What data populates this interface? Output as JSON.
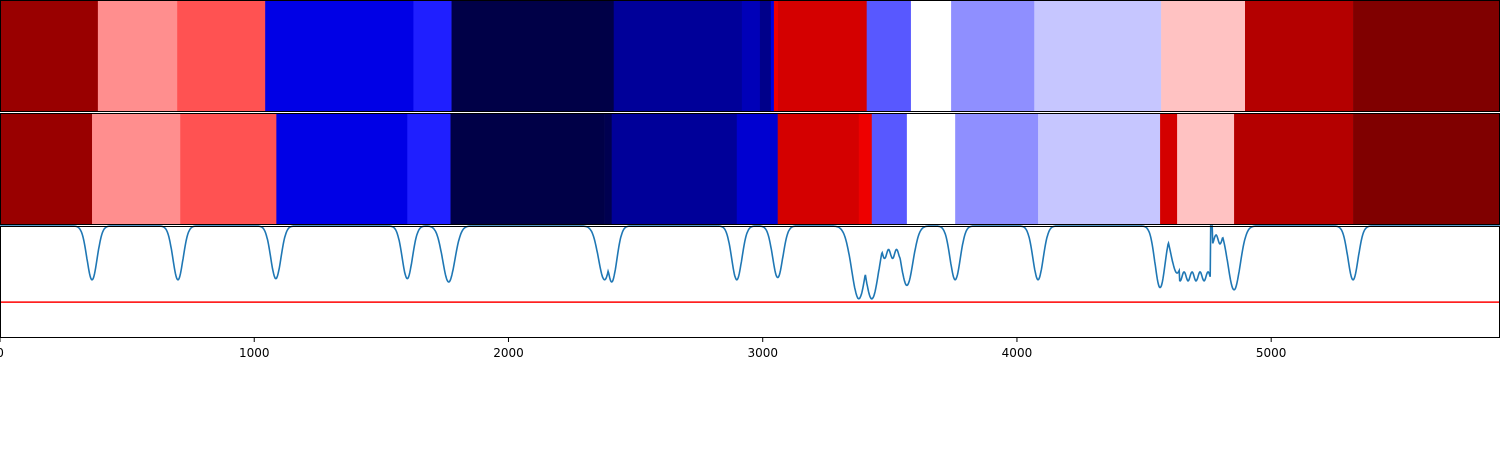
{
  "chart_data": {
    "type": "heatmap",
    "xlim": [
      0,
      5900
    ],
    "x_ticks": [
      {
        "value": 0,
        "label": "0"
      },
      {
        "value": 1000,
        "label": "1000"
      },
      {
        "value": 2000,
        "label": "2000"
      },
      {
        "value": 3000,
        "label": "3000"
      },
      {
        "value": 4000,
        "label": "4000"
      },
      {
        "value": 5000,
        "label": "5000"
      }
    ],
    "rows": [
      {
        "segments": [
          {
            "x0": 0,
            "x1": 385,
            "color": "#990000"
          },
          {
            "x0": 385,
            "x1": 697,
            "color": "#ff8e8e"
          },
          {
            "x0": 697,
            "x1": 1043,
            "color": "#ff5252"
          },
          {
            "x0": 1043,
            "x1": 1626,
            "color": "#0000e6"
          },
          {
            "x0": 1626,
            "x1": 1776,
            "color": "#1f1fff"
          },
          {
            "x0": 1776,
            "x1": 2414,
            "color": "#000047"
          },
          {
            "x0": 2414,
            "x1": 2918,
            "color": "#000099"
          },
          {
            "x0": 2918,
            "x1": 2989,
            "color": "#0000b8"
          },
          {
            "x0": 2989,
            "x1": 3032,
            "color": "#00008a"
          },
          {
            "x0": 3032,
            "x1": 3044,
            "color": "#0000e0"
          },
          {
            "x0": 3044,
            "x1": 3060,
            "color": "#ee0000"
          },
          {
            "x0": 3060,
            "x1": 3409,
            "color": "#d40000"
          },
          {
            "x0": 3409,
            "x1": 3583,
            "color": "#5858ff"
          },
          {
            "x0": 3583,
            "x1": 3741,
            "color": "#ffffff"
          },
          {
            "x0": 3741,
            "x1": 4068,
            "color": "#8f8fff"
          },
          {
            "x0": 4068,
            "x1": 4567,
            "color": "#c6c6ff"
          },
          {
            "x0": 4567,
            "x1": 4897,
            "color": "#ffc2c2"
          },
          {
            "x0": 4897,
            "x1": 5322,
            "color": "#b40000"
          },
          {
            "x0": 5322,
            "x1": 5900,
            "color": "#800000"
          }
        ]
      },
      {
        "segments": [
          {
            "x0": 0,
            "x1": 362,
            "color": "#990000"
          },
          {
            "x0": 362,
            "x1": 709,
            "color": "#ff8e8e"
          },
          {
            "x0": 709,
            "x1": 1087,
            "color": "#ff5252"
          },
          {
            "x0": 1087,
            "x1": 1602,
            "color": "#0000e6"
          },
          {
            "x0": 1602,
            "x1": 1772,
            "color": "#1f1fff"
          },
          {
            "x0": 1772,
            "x1": 2378,
            "color": "#000047"
          },
          {
            "x0": 2378,
            "x1": 2406,
            "color": "#000050"
          },
          {
            "x0": 2406,
            "x1": 2898,
            "color": "#000099"
          },
          {
            "x0": 2898,
            "x1": 3059,
            "color": "#0000d0"
          },
          {
            "x0": 3059,
            "x1": 3378,
            "color": "#d40000"
          },
          {
            "x0": 3378,
            "x1": 3429,
            "color": "#ee0000"
          },
          {
            "x0": 3429,
            "x1": 3567,
            "color": "#5858ff"
          },
          {
            "x0": 3567,
            "x1": 3757,
            "color": "#ffffff"
          },
          {
            "x0": 3757,
            "x1": 4083,
            "color": "#8f8fff"
          },
          {
            "x0": 4083,
            "x1": 4563,
            "color": "#c6c6ff"
          },
          {
            "x0": 4563,
            "x1": 4630,
            "color": "#d40000"
          },
          {
            "x0": 4630,
            "x1": 4854,
            "color": "#ffc2c2"
          },
          {
            "x0": 4854,
            "x1": 5322,
            "color": "#b40000"
          },
          {
            "x0": 5322,
            "x1": 5900,
            "color": "#800000"
          }
        ]
      }
    ],
    "line_panel": {
      "ylim": [
        0,
        1
      ],
      "threshold": {
        "value": 0.32,
        "color": "#ff0000"
      },
      "line_color": "#1f77b4",
      "baseline": 1.0,
      "dips": [
        {
          "x": 362,
          "depth": 0.48,
          "width": 5
        },
        {
          "x": 700,
          "depth": 0.48,
          "width": 5
        },
        {
          "x": 1085,
          "depth": 0.47,
          "width": 5
        },
        {
          "x": 1602,
          "depth": 0.47,
          "width": 5
        },
        {
          "x": 1765,
          "depth": 0.5,
          "width": 6
        },
        {
          "x": 2378,
          "depth": 0.48,
          "width": 6
        },
        {
          "x": 2406,
          "depth": 0.5,
          "width": 5
        },
        {
          "x": 2898,
          "depth": 0.48,
          "width": 5
        },
        {
          "x": 3059,
          "depth": 0.46,
          "width": 5
        },
        {
          "x": 3378,
          "depth": 0.65,
          "width": 7
        },
        {
          "x": 3429,
          "depth": 0.65,
          "width": 7
        },
        {
          "x": 3567,
          "depth": 0.53,
          "width": 6
        },
        {
          "x": 3757,
          "depth": 0.48,
          "width": 5
        },
        {
          "x": 4083,
          "depth": 0.48,
          "width": 5
        },
        {
          "x": 4563,
          "depth": 0.55,
          "width": 5
        },
        {
          "x": 4630,
          "depth": 0.42,
          "width": 6
        },
        {
          "x": 4854,
          "depth": 0.57,
          "width": 6
        },
        {
          "x": 5322,
          "depth": 0.48,
          "width": 5
        }
      ],
      "plateaus": [
        {
          "x0": 3440,
          "x1": 3560,
          "level": 0.75
        },
        {
          "x0": 4640,
          "x1": 4760,
          "level": 0.55
        },
        {
          "x0": 4770,
          "x1": 4850,
          "level": 0.88
        }
      ]
    },
    "title": "",
    "xlabel": "",
    "ylabel": ""
  }
}
